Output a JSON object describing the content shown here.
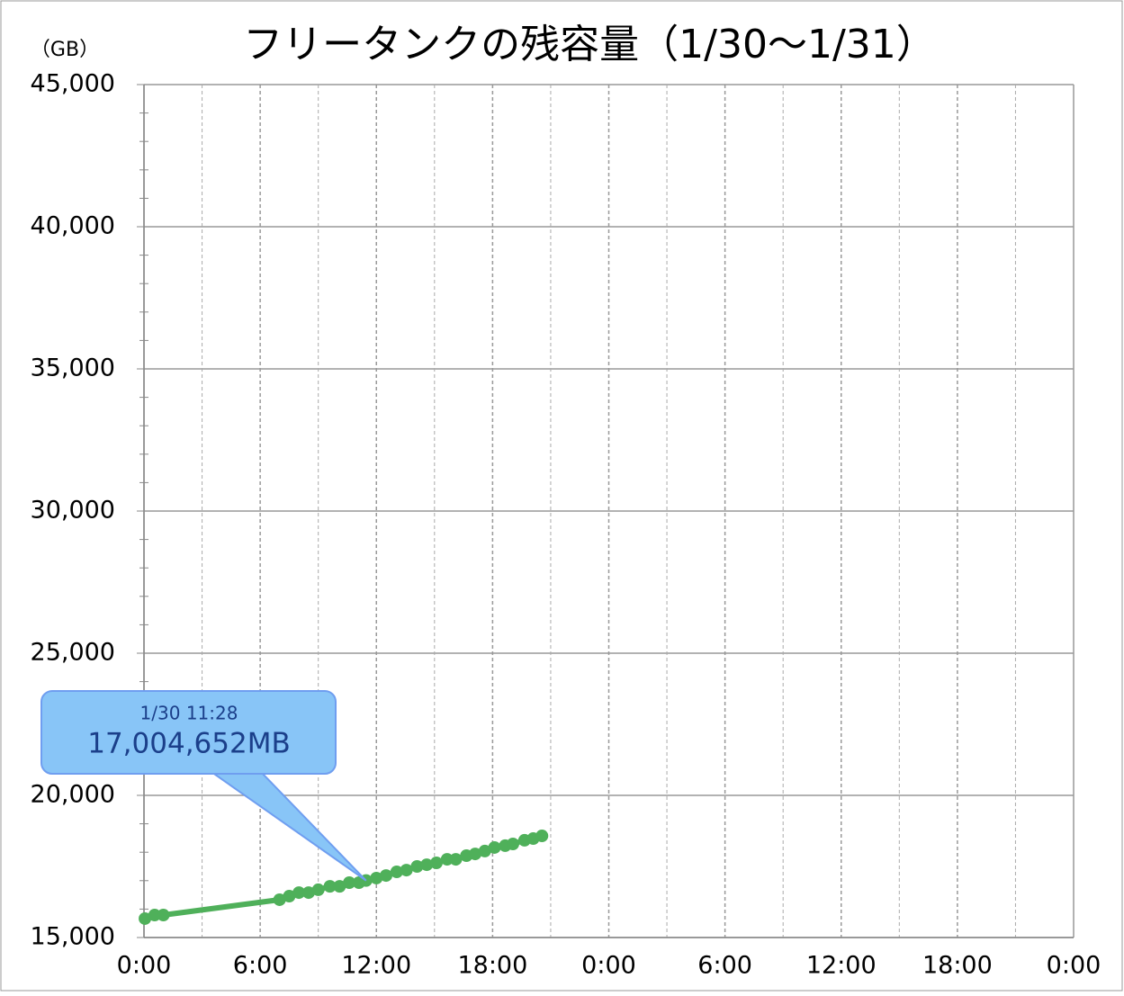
{
  "chart_data": {
    "type": "line",
    "title": "フリータンクの残容量（1/30〜1/31）",
    "y_unit": "（GB）",
    "x": [
      0.05,
      0.55,
      1.0,
      7.0,
      7.5,
      8.0,
      8.5,
      9.0,
      9.6,
      10.1,
      10.6,
      11.1,
      11.467,
      12.0,
      12.5,
      13.05,
      13.55,
      14.1,
      14.6,
      15.1,
      15.65,
      16.1,
      16.65,
      17.1,
      17.6,
      18.1,
      18.65,
      19.05,
      19.65,
      20.1,
      20.55
    ],
    "series": [
      {
        "color": "#4fb05a",
        "values": [
          15665,
          15790,
          15790,
          16330,
          16455,
          16580,
          16580,
          16680,
          16800,
          16800,
          16930,
          16930,
          17004.652,
          17090,
          17180,
          17310,
          17370,
          17500,
          17560,
          17625,
          17750,
          17750,
          17880,
          17940,
          18040,
          18165,
          18230,
          18290,
          18420,
          18480,
          18575
        ]
      }
    ],
    "xlim": [
      0,
      48
    ],
    "xticks": [
      {
        "value": 0,
        "label": "0:00"
      },
      {
        "value": 6,
        "label": "6:00"
      },
      {
        "value": 12,
        "label": "12:00"
      },
      {
        "value": 18,
        "label": "18:00"
      },
      {
        "value": 24,
        "label": "0:00"
      },
      {
        "value": 30,
        "label": "6:00"
      },
      {
        "value": 36,
        "label": "12:00"
      },
      {
        "value": 42,
        "label": "18:00"
      },
      {
        "value": 48,
        "label": "0:00"
      }
    ],
    "ylim": [
      15000,
      45000
    ],
    "yticks": [
      {
        "value": 15000,
        "label": "15,000"
      },
      {
        "value": 20000,
        "label": "20,000"
      },
      {
        "value": 25000,
        "label": "25,000"
      },
      {
        "value": 30000,
        "label": "30,000"
      },
      {
        "value": 35000,
        "label": "35,000"
      },
      {
        "value": 40000,
        "label": "40,000"
      },
      {
        "value": 45000,
        "label": "45,000"
      }
    ],
    "grid": true,
    "annotation": {
      "x": 11.467,
      "value": 17004.652,
      "time": "1/30 11:28",
      "label": "17,004,652MB"
    }
  }
}
